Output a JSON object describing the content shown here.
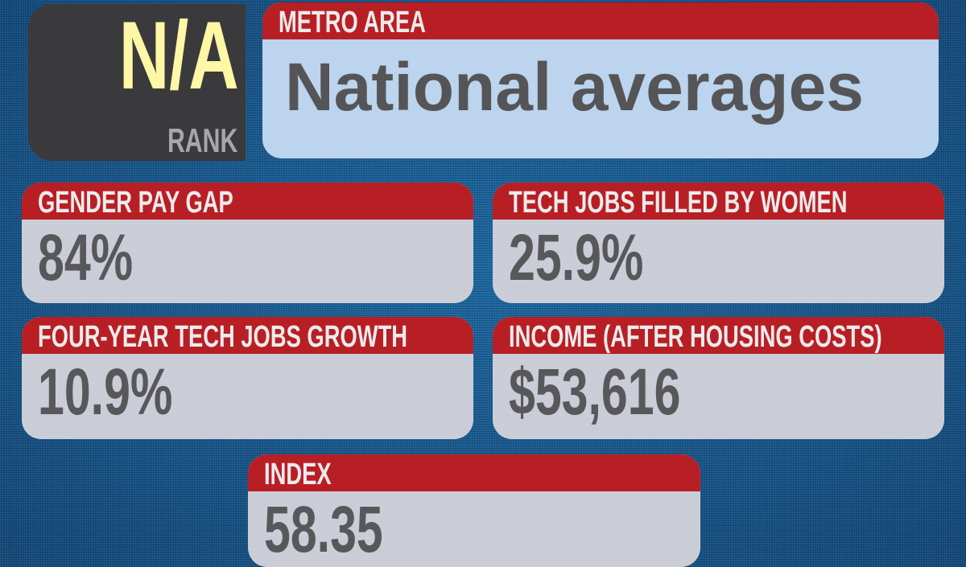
{
  "rank": {
    "value": "N/A",
    "label": "RANK"
  },
  "metro": {
    "label": "METRO AREA",
    "value": "National averages"
  },
  "stats": [
    {
      "label": "GENDER PAY GAP",
      "value": "84%"
    },
    {
      "label": "TECH JOBS FILLED BY WOMEN",
      "value": "25.9%"
    },
    {
      "label": "FOUR-YEAR TECH JOBS GROWTH",
      "value": "10.9%"
    },
    {
      "label": "INCOME (AFTER HOUSING COSTS)",
      "value": "$53,616"
    },
    {
      "label": "INDEX",
      "value": "58.35"
    }
  ],
  "colors": {
    "header": "#b81f24",
    "rank_value": "#fdf7a6",
    "background": "#1a5b8e"
  }
}
